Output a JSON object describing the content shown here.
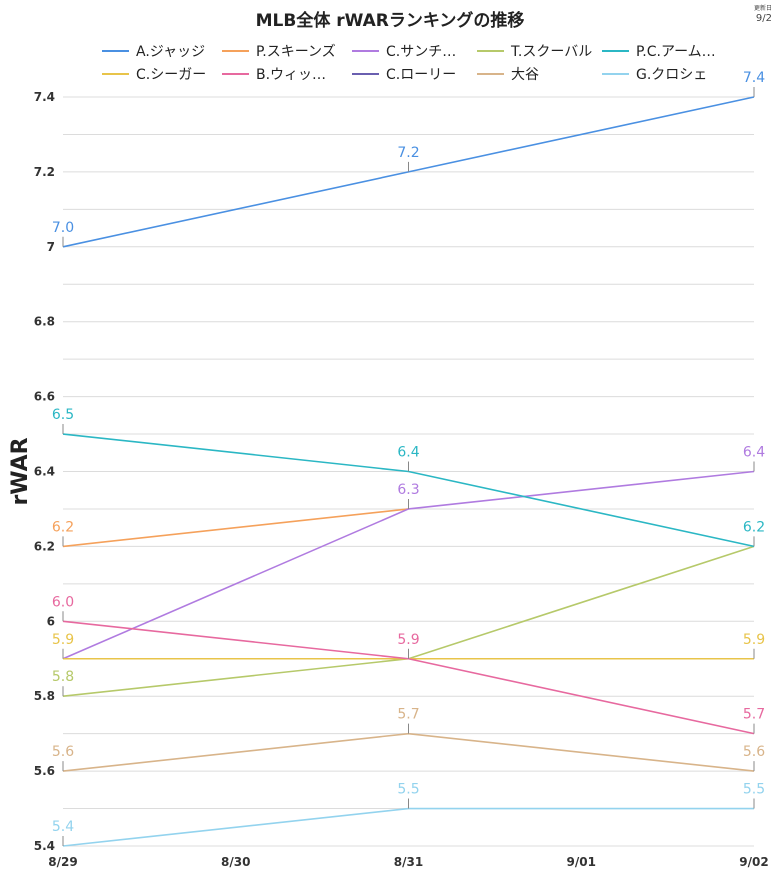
{
  "header": {
    "title": "MLB全体 rWARランキングの推移",
    "updated_label": "更新日",
    "updated_date": "9/2"
  },
  "chart_data": {
    "type": "line",
    "title": "MLB全体 rWARランキングの推移",
    "xlabel": "",
    "ylabel": "rWAR",
    "categories": [
      "8/29",
      "8/30",
      "8/31",
      "9/01",
      "9/02"
    ],
    "ylim": [
      5.4,
      7.4
    ],
    "yticks": [
      "5.4",
      "5.6",
      "5.8",
      "6",
      "6.2",
      "6.4",
      "6.6",
      "6.8",
      "7",
      "7.2",
      "7.4"
    ],
    "grid": true,
    "legend_position": "top",
    "series": [
      {
        "name": "A.ジャッジ",
        "color": "#4a90e2",
        "points": [
          {
            "x": "8/29",
            "y": 7.0,
            "label": "7.0"
          },
          {
            "x": "8/31",
            "y": 7.2,
            "label": "7.2"
          },
          {
            "x": "9/02",
            "y": 7.4,
            "label": "7.4"
          }
        ]
      },
      {
        "name": "P.スキーンズ",
        "color": "#f5a15b",
        "points": [
          {
            "x": "8/29",
            "y": 6.2,
            "label": "6.2"
          },
          {
            "x": "8/31",
            "y": 6.3,
            "label": ""
          }
        ]
      },
      {
        "name": "C.サンチ…",
        "color": "#b07be0",
        "points": [
          {
            "x": "8/29",
            "y": 5.9,
            "label": ""
          },
          {
            "x": "8/31",
            "y": 6.3,
            "label": "6.3"
          },
          {
            "x": "9/02",
            "y": 6.4,
            "label": "6.4"
          }
        ]
      },
      {
        "name": "T.スクーバル",
        "color": "#b6c96a",
        "points": [
          {
            "x": "8/29",
            "y": 5.8,
            "label": "5.8"
          },
          {
            "x": "8/31",
            "y": 5.9,
            "label": ""
          },
          {
            "x": "9/02",
            "y": 6.2,
            "label": ""
          }
        ]
      },
      {
        "name": "P.C.アーム…",
        "color": "#2bb7c4",
        "points": [
          {
            "x": "8/29",
            "y": 6.5,
            "label": "6.5"
          },
          {
            "x": "8/31",
            "y": 6.4,
            "label": "6.4"
          },
          {
            "x": "9/02",
            "y": 6.2,
            "label": "6.2"
          }
        ]
      },
      {
        "name": "C.シーガー",
        "color": "#e8c44a",
        "points": [
          {
            "x": "8/29",
            "y": 5.9,
            "label": "5.9"
          },
          {
            "x": "8/31",
            "y": 5.9,
            "label": ""
          },
          {
            "x": "9/02",
            "y": 5.9,
            "label": "5.9"
          }
        ]
      },
      {
        "name": "B.ウィッ…",
        "color": "#e7699f",
        "points": [
          {
            "x": "8/29",
            "y": 6.0,
            "label": "6.0"
          },
          {
            "x": "8/31",
            "y": 5.9,
            "label": "5.9"
          },
          {
            "x": "9/02",
            "y": 5.7,
            "label": "5.7"
          }
        ]
      },
      {
        "name": "C.ローリー",
        "color": "#6a5fb0",
        "points": []
      },
      {
        "name": "大谷",
        "color": "#d8b48a",
        "points": [
          {
            "x": "8/29",
            "y": 5.6,
            "label": "5.6"
          },
          {
            "x": "8/31",
            "y": 5.7,
            "label": "5.7"
          },
          {
            "x": "9/02",
            "y": 5.6,
            "label": "5.6"
          }
        ]
      },
      {
        "name": "G.クロシェ",
        "color": "#93d3ee",
        "points": [
          {
            "x": "8/29",
            "y": 5.4,
            "label": "5.4"
          },
          {
            "x": "8/31",
            "y": 5.5,
            "label": "5.5"
          },
          {
            "x": "9/02",
            "y": 5.5,
            "label": "5.5"
          }
        ]
      }
    ]
  }
}
